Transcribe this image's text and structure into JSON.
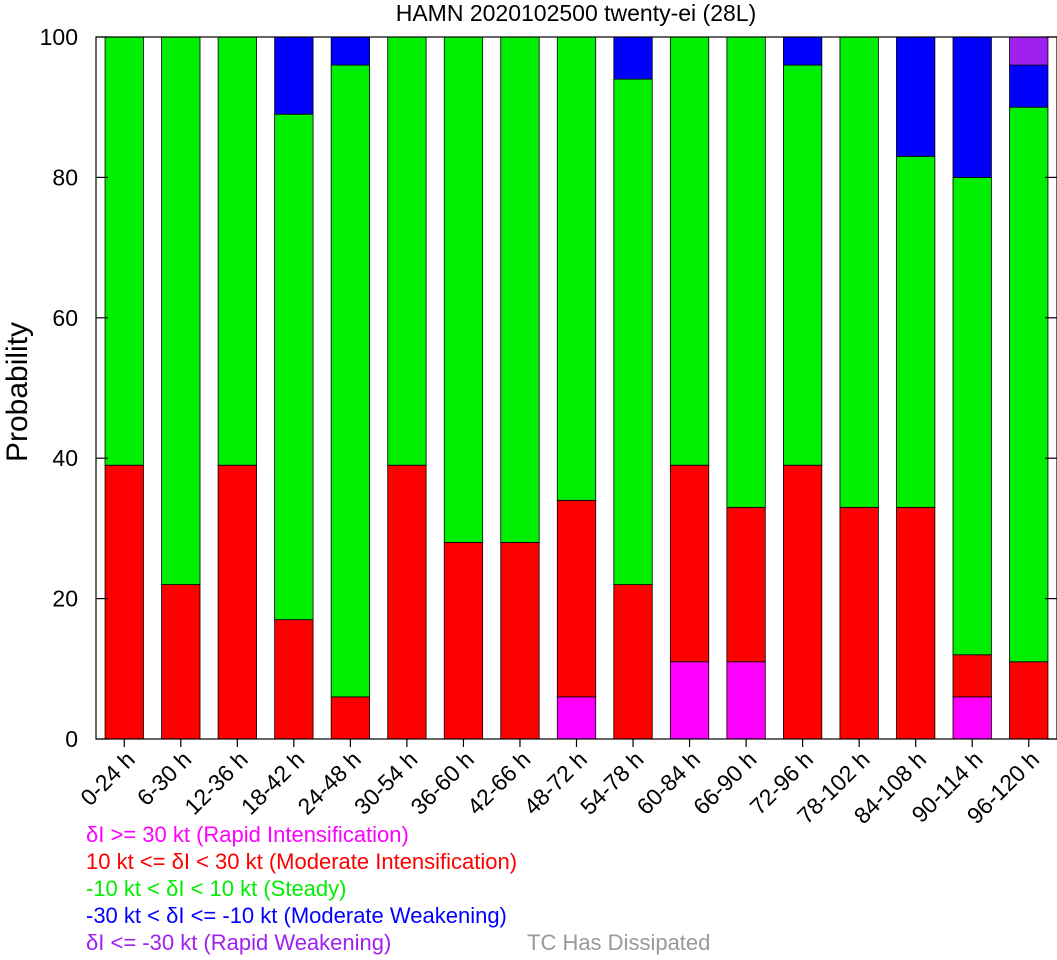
{
  "chart_data": {
    "type": "bar",
    "stacked": true,
    "title": "HAMN 2020102500 twenty-ei (28L)",
    "xlabel": "",
    "ylabel": "Probability",
    "ylim": [
      0,
      100
    ],
    "yticks": [
      0,
      20,
      40,
      60,
      80,
      100
    ],
    "grid": false,
    "legend_placement": "bottom-left",
    "categories": [
      "0-24 h",
      "6-30 h",
      "12-36 h",
      "18-42 h",
      "24-48 h",
      "30-54 h",
      "36-60 h",
      "42-66 h",
      "48-72 h",
      "54-78 h",
      "60-84 h",
      "66-90 h",
      "72-96 h",
      "78-102 h",
      "84-108 h",
      "90-114 h",
      "96-120 h"
    ],
    "series": [
      {
        "name": "δI >= 30 kt (Rapid Intensification)",
        "color": "#ff00ff",
        "values": [
          0,
          0,
          0,
          0,
          0,
          0,
          0,
          0,
          6,
          0,
          11,
          11,
          0,
          0,
          0,
          6,
          0
        ]
      },
      {
        "name": "10 kt <= δI < 30 kt (Moderate Intensification)",
        "color": "#ff0000",
        "values": [
          39,
          22,
          39,
          17,
          6,
          39,
          28,
          28,
          28,
          22,
          28,
          22,
          39,
          33,
          33,
          6,
          11
        ]
      },
      {
        "name": "-10 kt < δI < 10 kt (Steady)",
        "color": "#00ee00",
        "values": [
          61,
          78,
          61,
          72,
          90,
          61,
          72,
          72,
          66,
          72,
          61,
          67,
          57,
          67,
          50,
          68,
          79
        ]
      },
      {
        "name": "-30 kt < δI <= -10 kt (Moderate Weakening)",
        "color": "#0000ff",
        "values": [
          0,
          0,
          0,
          11,
          4,
          0,
          0,
          0,
          0,
          6,
          0,
          0,
          4,
          0,
          17,
          20,
          6
        ]
      },
      {
        "name": "δI <= -30 kt (Rapid Weakening)",
        "color": "#a020f0",
        "values": [
          0,
          0,
          0,
          0,
          0,
          0,
          0,
          0,
          0,
          0,
          0,
          0,
          0,
          0,
          0,
          0,
          4
        ]
      },
      {
        "name": "TC Has Dissipated",
        "color": "#999999",
        "values": [
          0,
          0,
          0,
          0,
          0,
          0,
          0,
          0,
          0,
          0,
          0,
          0,
          0,
          0,
          0,
          0,
          0
        ]
      }
    ]
  }
}
